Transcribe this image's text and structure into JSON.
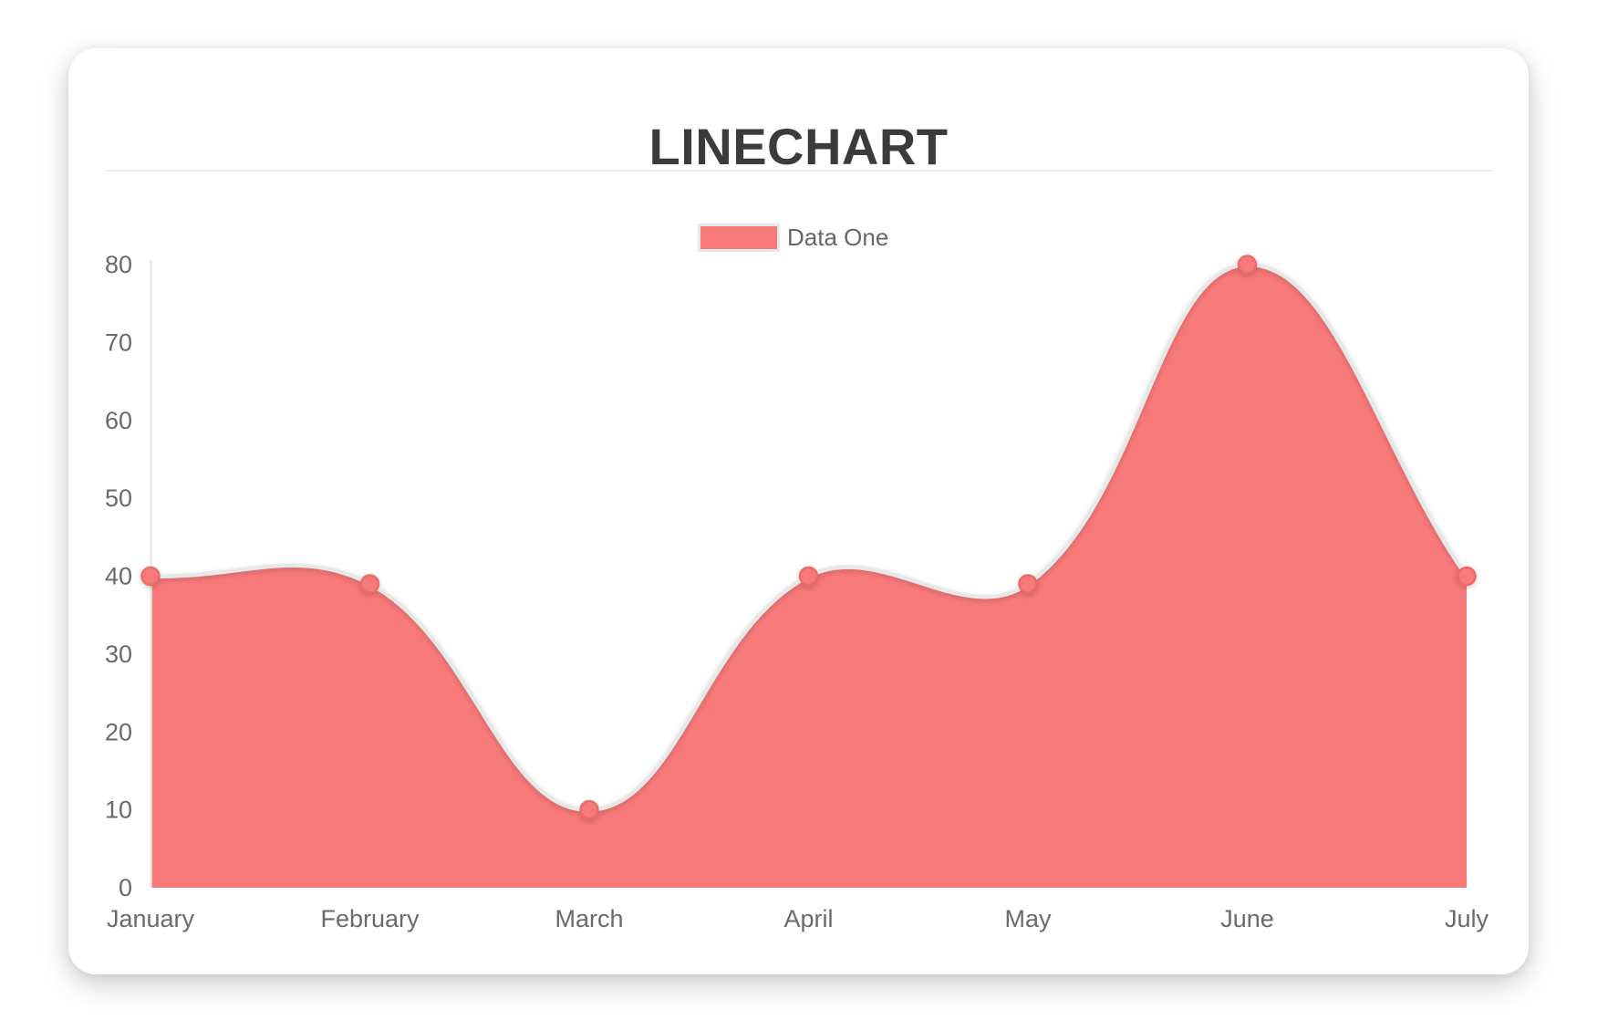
{
  "chart_data": {
    "type": "line",
    "title": "LINECHART",
    "categories": [
      "January",
      "February",
      "March",
      "April",
      "May",
      "June",
      "July"
    ],
    "series": [
      {
        "name": "Data One",
        "values": [
          40,
          39,
          10,
          40,
          39,
          80,
          40
        ]
      }
    ],
    "xlabel": "",
    "ylabel": "",
    "ylim": [
      0,
      80
    ],
    "y_ticks": [
      0,
      10,
      20,
      30,
      40,
      50,
      60,
      70,
      80
    ],
    "grid": false,
    "legend_position": "top-center",
    "area_fill": true,
    "line_tension": 0.4,
    "colors": {
      "area_fill": "#f87979",
      "line": "#e8e8e8",
      "point_fill": "#f87979",
      "point_border": "#ed6a6a",
      "axis_line": "#e8e8e8",
      "tick_label": "#6a6a6a",
      "title": "#3b3b3b",
      "legend_label": "#666666",
      "legend_swatch": "#f87979",
      "legend_swatch_border": "#e7e7e7",
      "divider": "#eaeaea"
    }
  }
}
